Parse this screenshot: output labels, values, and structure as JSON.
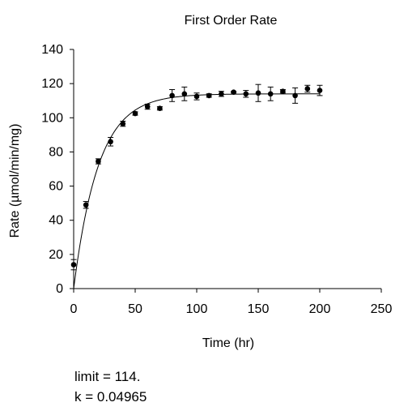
{
  "chart_data": {
    "type": "scatter",
    "title": "First Order Rate",
    "xlabel": "Time (hr)",
    "ylabel": "Rate (µmol/min/mg)",
    "xlim": [
      0,
      250
    ],
    "ylim": [
      0,
      140
    ],
    "xticks": [
      0,
      50,
      100,
      150,
      200,
      250
    ],
    "yticks": [
      0,
      20,
      40,
      60,
      80,
      100,
      120,
      140
    ],
    "grid": false,
    "series": [
      {
        "x": [
          0,
          10,
          20,
          30,
          40,
          50,
          60,
          70,
          80,
          90,
          100,
          110,
          120,
          130,
          140,
          150,
          160,
          170,
          180,
          190,
          200
        ],
        "y": [
          14,
          49,
          74.5,
          86,
          96.5,
          102.5,
          106.5,
          105.5,
          113,
          114,
          112.5,
          113,
          114,
          115,
          114,
          114.5,
          114,
          115.5,
          113,
          117,
          116
        ],
        "error": [
          3,
          2,
          1.5,
          2.5,
          1.5,
          1,
          1.5,
          1,
          3.5,
          4,
          2,
          1,
          1.5,
          0.5,
          2,
          5,
          4,
          1,
          4.5,
          2,
          3
        ],
        "marker": "circle",
        "color": "#000000"
      }
    ],
    "fit": {
      "model": "limit*(1-exp(-k*t))",
      "limit": 114,
      "k": 0.04965,
      "t_range": [
        0,
        200
      ]
    }
  },
  "annotations": {
    "limit_text": "limit = 114.",
    "k_text": "k = 0.04965"
  }
}
